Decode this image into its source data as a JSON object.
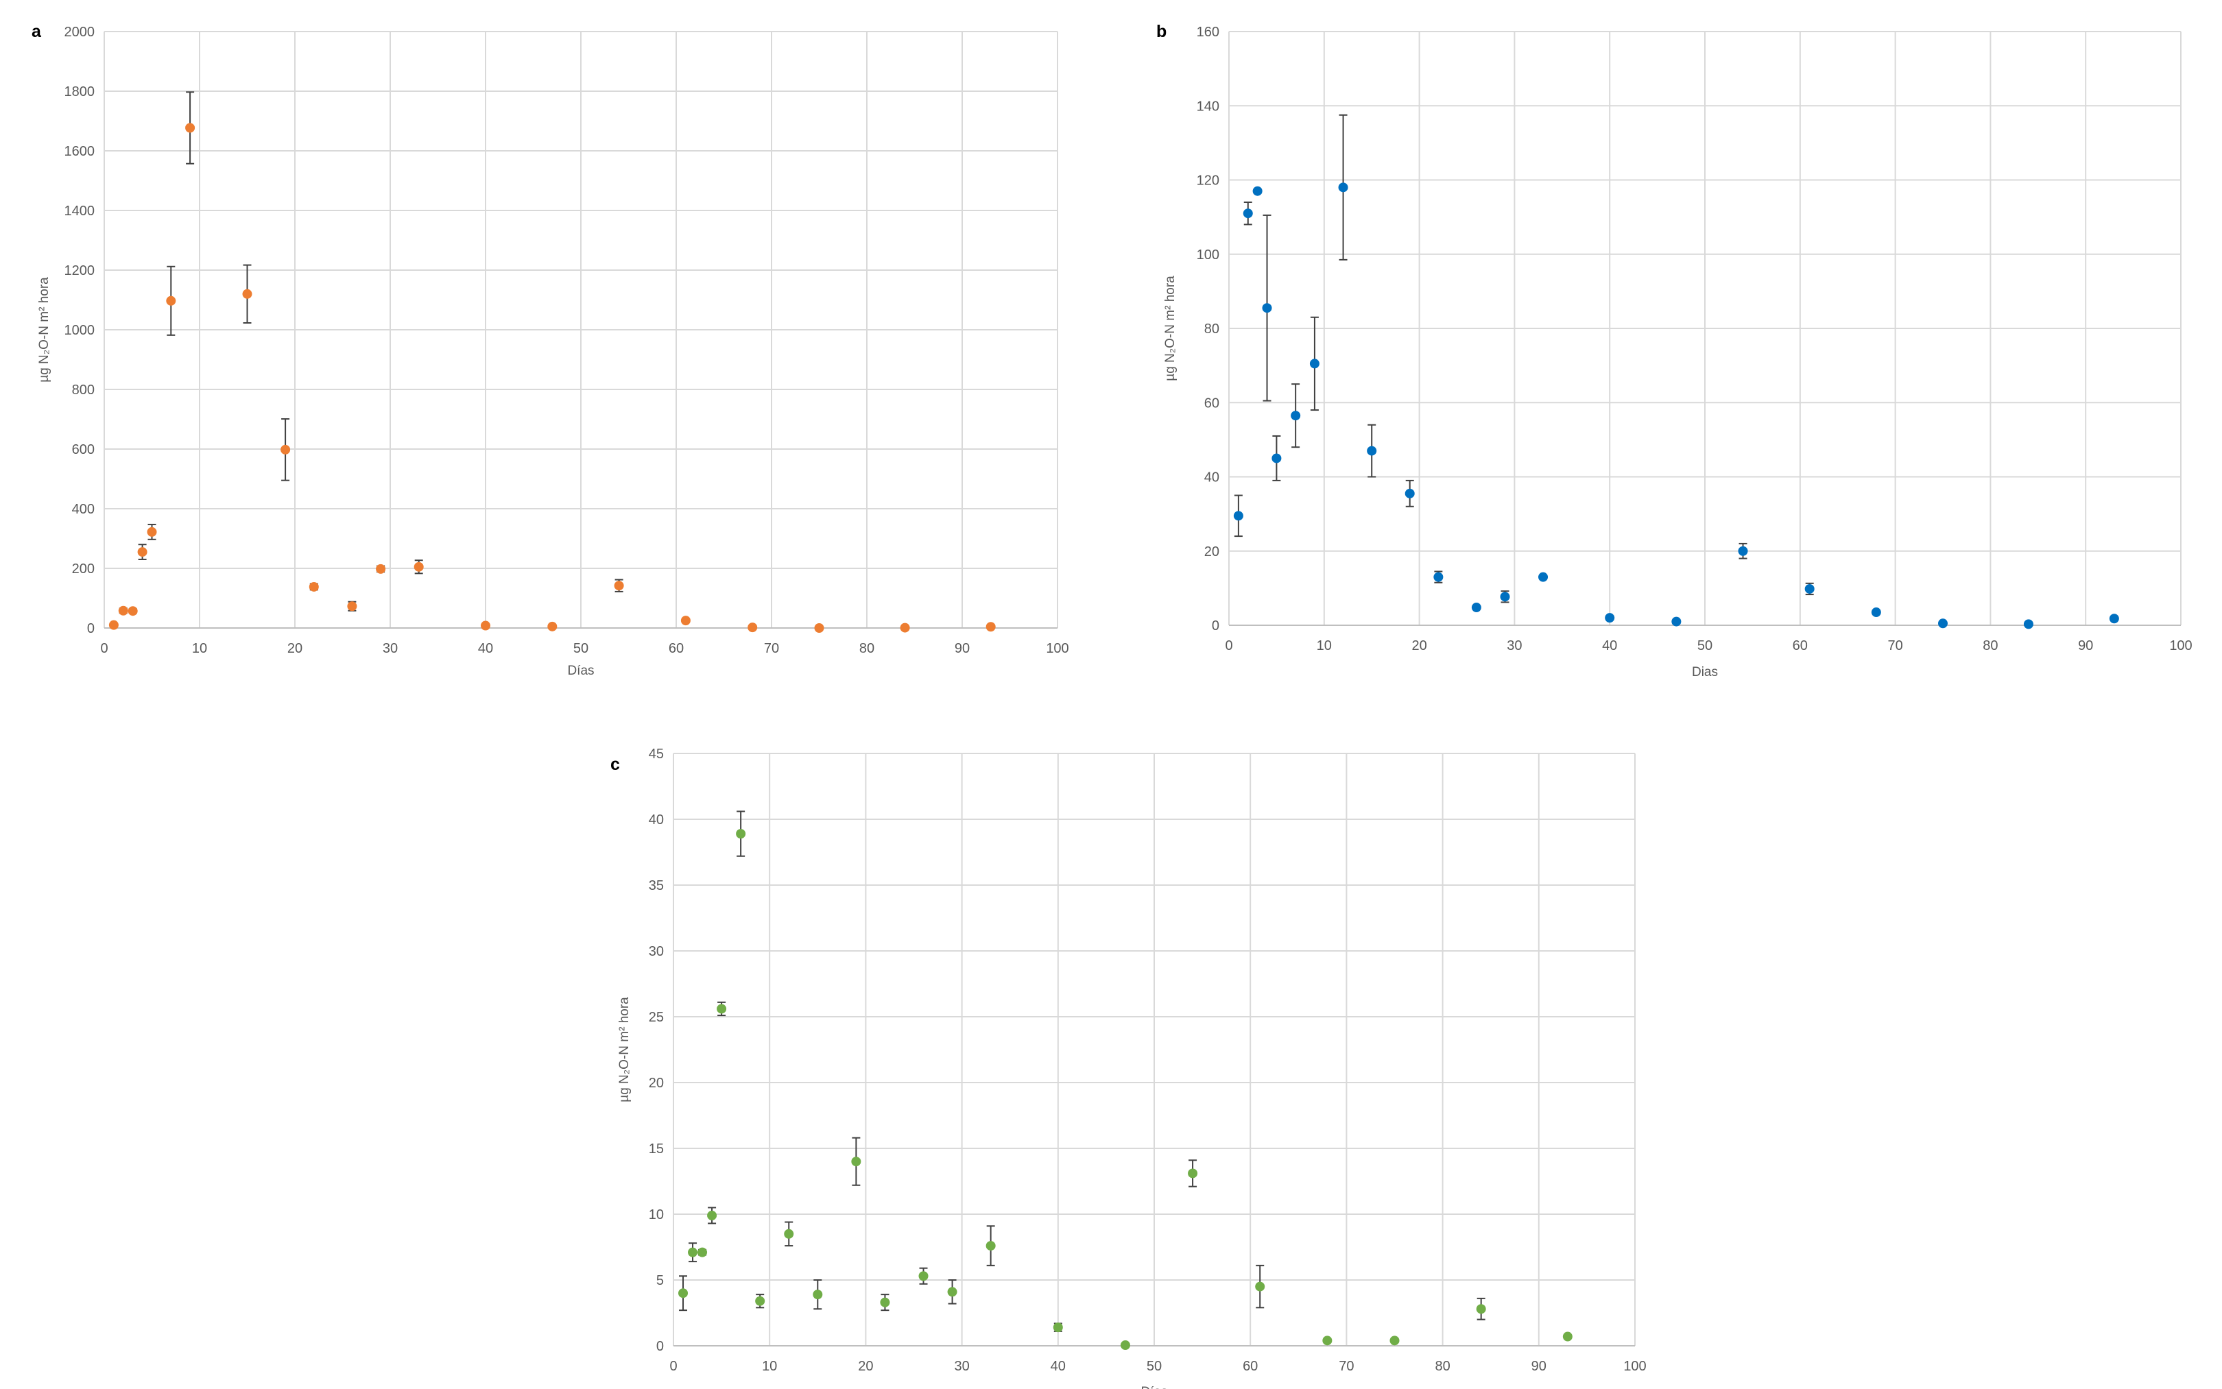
{
  "chart_data": [
    {
      "panel": "a",
      "type": "scatter",
      "xlabel": "Días",
      "ylabel": "µg N₂O-N m² hora",
      "xlim": [
        0,
        100
      ],
      "ylim": [
        0,
        2000
      ],
      "x_ticks": [
        0,
        10,
        20,
        30,
        40,
        50,
        60,
        70,
        80,
        90,
        100
      ],
      "y_ticks": [
        0,
        200,
        400,
        600,
        800,
        1000,
        1200,
        1400,
        1600,
        1800,
        2000
      ],
      "grid": true,
      "color": "#ED7D31",
      "points": [
        {
          "x": 1,
          "y": 10,
          "err": 5
        },
        {
          "x": 2,
          "y": 58,
          "err": 8
        },
        {
          "x": 3,
          "y": 57,
          "err": 7
        },
        {
          "x": 4,
          "y": 255,
          "err": 25
        },
        {
          "x": 5,
          "y": 322,
          "err": 25
        },
        {
          "x": 7,
          "y": 1097,
          "err": 115
        },
        {
          "x": 9,
          "y": 1677,
          "err": 120
        },
        {
          "x": 15,
          "y": 1120,
          "err": 97
        },
        {
          "x": 19,
          "y": 598,
          "err": 103
        },
        {
          "x": 22,
          "y": 138,
          "err": 10
        },
        {
          "x": 26,
          "y": 73,
          "err": 15
        },
        {
          "x": 29,
          "y": 198,
          "err": 10
        },
        {
          "x": 33,
          "y": 205,
          "err": 22
        },
        {
          "x": 40,
          "y": 8,
          "err": 3
        },
        {
          "x": 47,
          "y": 5,
          "err": 3
        },
        {
          "x": 54,
          "y": 142,
          "err": 20
        },
        {
          "x": 61,
          "y": 25,
          "err": 4
        },
        {
          "x": 68,
          "y": 2,
          "err": 2
        },
        {
          "x": 75,
          "y": 0,
          "err": 2
        },
        {
          "x": 84,
          "y": 1,
          "err": 2
        },
        {
          "x": 93,
          "y": 4,
          "err": 2
        }
      ]
    },
    {
      "panel": "b",
      "type": "scatter",
      "xlabel": "Dias",
      "ylabel": "µg N₂O-N m² hora",
      "xlim": [
        0,
        100
      ],
      "ylim": [
        0,
        160
      ],
      "x_ticks": [
        0,
        10,
        20,
        30,
        40,
        50,
        60,
        70,
        80,
        90,
        100
      ],
      "y_ticks": [
        0,
        20,
        40,
        60,
        80,
        100,
        120,
        140,
        160
      ],
      "grid": true,
      "color": "#0070C0",
      "points": [
        {
          "x": 1,
          "y": 29.5,
          "err": 5.5
        },
        {
          "x": 2,
          "y": 111,
          "err": 3
        },
        {
          "x": 3,
          "y": 117,
          "err": 0.5
        },
        {
          "x": 4,
          "y": 85.5,
          "err": 25
        },
        {
          "x": 5,
          "y": 45,
          "err": 6
        },
        {
          "x": 7,
          "y": 56.5,
          "err": 8.5
        },
        {
          "x": 9,
          "y": 70.5,
          "err": 12.5
        },
        {
          "x": 12,
          "y": 118,
          "err": 19.5
        },
        {
          "x": 15,
          "y": 47,
          "err": 7
        },
        {
          "x": 19,
          "y": 35.5,
          "err": 3.5
        },
        {
          "x": 22,
          "y": 13,
          "err": 1.5
        },
        {
          "x": 26,
          "y": 4.8,
          "err": 0.5
        },
        {
          "x": 29,
          "y": 7.7,
          "err": 1.5
        },
        {
          "x": 33,
          "y": 13,
          "err": 0.5
        },
        {
          "x": 40,
          "y": 2,
          "err": 0.5
        },
        {
          "x": 47,
          "y": 1,
          "err": 0.3
        },
        {
          "x": 54,
          "y": 20,
          "err": 2
        },
        {
          "x": 61,
          "y": 9.8,
          "err": 1.5
        },
        {
          "x": 68,
          "y": 3.5,
          "err": 0.5
        },
        {
          "x": 75,
          "y": 0.5,
          "err": 0.3
        },
        {
          "x": 84,
          "y": 0.3,
          "err": 0.2
        },
        {
          "x": 93,
          "y": 1.8,
          "err": 0.3
        }
      ]
    },
    {
      "panel": "c",
      "type": "scatter",
      "xlabel": "Días",
      "ylabel": "µg N₂O-N m² hora",
      "xlim": [
        0,
        100
      ],
      "ylim": [
        0,
        45
      ],
      "x_ticks": [
        0,
        10,
        20,
        30,
        40,
        50,
        60,
        70,
        80,
        90,
        100
      ],
      "y_ticks": [
        0,
        5,
        10,
        15,
        20,
        25,
        30,
        35,
        40,
        45
      ],
      "grid": true,
      "color": "#70AD47",
      "points": [
        {
          "x": 1,
          "y": 4,
          "err": 1.3
        },
        {
          "x": 2,
          "y": 7.1,
          "err": 0.7
        },
        {
          "x": 3,
          "y": 7.1,
          "err": 0.2
        },
        {
          "x": 4,
          "y": 9.9,
          "err": 0.6
        },
        {
          "x": 5,
          "y": 25.6,
          "err": 0.5
        },
        {
          "x": 7,
          "y": 38.9,
          "err": 1.7
        },
        {
          "x": 9,
          "y": 3.4,
          "err": 0.5
        },
        {
          "x": 12,
          "y": 8.5,
          "err": 0.9
        },
        {
          "x": 15,
          "y": 3.9,
          "err": 1.1
        },
        {
          "x": 19,
          "y": 14,
          "err": 1.8
        },
        {
          "x": 22,
          "y": 3.3,
          "err": 0.6
        },
        {
          "x": 26,
          "y": 5.3,
          "err": 0.6
        },
        {
          "x": 29,
          "y": 4.1,
          "err": 0.9
        },
        {
          "x": 33,
          "y": 7.6,
          "err": 1.5
        },
        {
          "x": 40,
          "y": 1.4,
          "err": 0.3
        },
        {
          "x": 47,
          "y": 0.05,
          "err": 0.05
        },
        {
          "x": 54,
          "y": 13.1,
          "err": 1
        },
        {
          "x": 61,
          "y": 4.5,
          "err": 1.6
        },
        {
          "x": 68,
          "y": 0.4,
          "err": 0.1
        },
        {
          "x": 75,
          "y": 0.4,
          "err": 0.1
        },
        {
          "x": 84,
          "y": 2.8,
          "err": 0.8
        },
        {
          "x": 93,
          "y": 0.7,
          "err": 0.1
        }
      ]
    }
  ]
}
